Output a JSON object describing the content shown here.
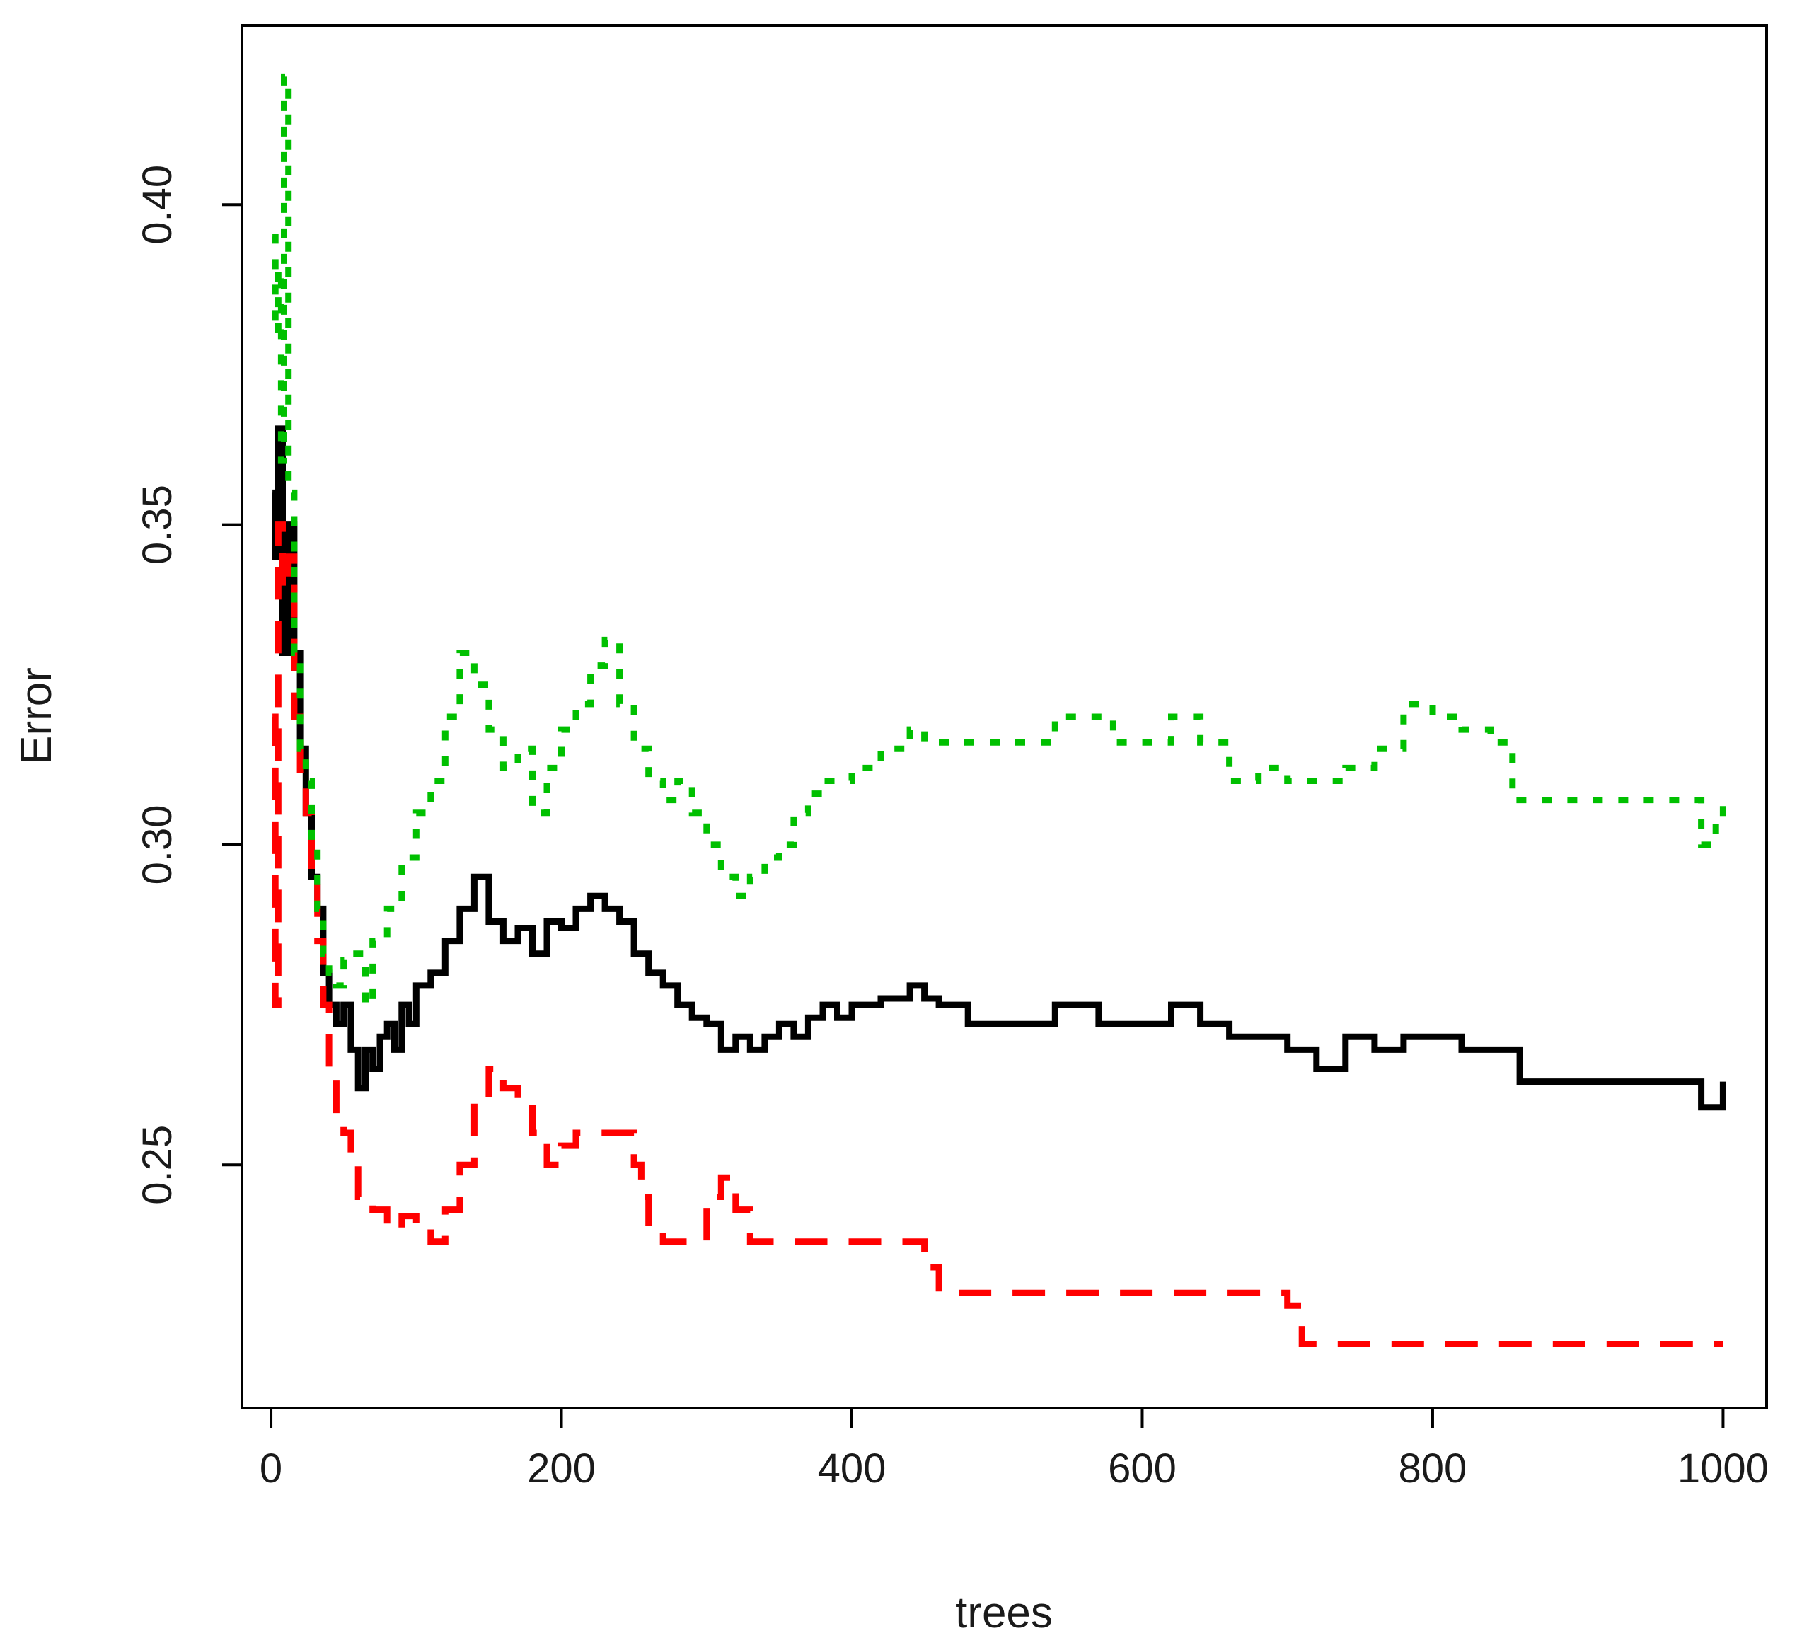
{
  "chart_data": {
    "type": "line",
    "title": "",
    "xlabel": "trees",
    "ylabel": "Error",
    "xlim": [
      -20,
      1030
    ],
    "ylim": [
      0.212,
      0.428
    ],
    "xticks": [
      0,
      200,
      400,
      600,
      800,
      1000
    ],
    "xtick_labels": [
      "0",
      "200",
      "400",
      "600",
      "800",
      "1000"
    ],
    "yticks": [
      0.25,
      0.3,
      0.35,
      0.4
    ],
    "ytick_labels": [
      "0.25",
      "0.30",
      "0.35",
      "0.40"
    ],
    "grid": false,
    "legend": "none",
    "series": [
      {
        "color": "#000000",
        "dash": "solid",
        "points": [
          [
            1,
            0.355
          ],
          [
            3,
            0.345
          ],
          [
            5,
            0.365
          ],
          [
            8,
            0.33
          ],
          [
            12,
            0.35
          ],
          [
            16,
            0.33
          ],
          [
            20,
            0.315
          ],
          [
            24,
            0.305
          ],
          [
            28,
            0.295
          ],
          [
            32,
            0.29
          ],
          [
            36,
            0.28
          ],
          [
            40,
            0.275
          ],
          [
            45,
            0.272
          ],
          [
            50,
            0.275
          ],
          [
            55,
            0.268
          ],
          [
            60,
            0.262
          ],
          [
            65,
            0.268
          ],
          [
            70,
            0.265
          ],
          [
            75,
            0.27
          ],
          [
            80,
            0.272
          ],
          [
            85,
            0.268
          ],
          [
            90,
            0.275
          ],
          [
            95,
            0.272
          ],
          [
            100,
            0.278
          ],
          [
            110,
            0.28
          ],
          [
            120,
            0.285
          ],
          [
            130,
            0.29
          ],
          [
            140,
            0.295
          ],
          [
            150,
            0.288
          ],
          [
            160,
            0.285
          ],
          [
            170,
            0.287
          ],
          [
            180,
            0.283
          ],
          [
            190,
            0.288
          ],
          [
            200,
            0.287
          ],
          [
            210,
            0.29
          ],
          [
            220,
            0.292
          ],
          [
            230,
            0.29
          ],
          [
            240,
            0.288
          ],
          [
            250,
            0.283
          ],
          [
            260,
            0.28
          ],
          [
            270,
            0.278
          ],
          [
            280,
            0.275
          ],
          [
            290,
            0.273
          ],
          [
            300,
            0.272
          ],
          [
            310,
            0.268
          ],
          [
            320,
            0.27
          ],
          [
            330,
            0.268
          ],
          [
            340,
            0.27
          ],
          [
            350,
            0.272
          ],
          [
            360,
            0.27
          ],
          [
            370,
            0.273
          ],
          [
            380,
            0.275
          ],
          [
            390,
            0.273
          ],
          [
            400,
            0.275
          ],
          [
            420,
            0.276
          ],
          [
            440,
            0.278
          ],
          [
            450,
            0.276
          ],
          [
            460,
            0.275
          ],
          [
            480,
            0.272
          ],
          [
            500,
            0.272
          ],
          [
            520,
            0.272
          ],
          [
            540,
            0.275
          ],
          [
            560,
            0.275
          ],
          [
            570,
            0.272
          ],
          [
            600,
            0.272
          ],
          [
            620,
            0.275
          ],
          [
            640,
            0.272
          ],
          [
            660,
            0.27
          ],
          [
            680,
            0.27
          ],
          [
            700,
            0.268
          ],
          [
            720,
            0.265
          ],
          [
            740,
            0.27
          ],
          [
            760,
            0.268
          ],
          [
            780,
            0.27
          ],
          [
            800,
            0.27
          ],
          [
            820,
            0.268
          ],
          [
            850,
            0.268
          ],
          [
            860,
            0.263
          ],
          [
            900,
            0.263
          ],
          [
            950,
            0.263
          ],
          [
            980,
            0.263
          ],
          [
            985,
            0.259
          ],
          [
            995,
            0.259
          ],
          [
            1000,
            0.263
          ]
        ]
      },
      {
        "color": "#ff0000",
        "dash": "dashed",
        "points": [
          [
            1,
            0.32
          ],
          [
            3,
            0.275
          ],
          [
            5,
            0.35
          ],
          [
            8,
            0.34
          ],
          [
            12,
            0.345
          ],
          [
            16,
            0.32
          ],
          [
            20,
            0.31
          ],
          [
            24,
            0.305
          ],
          [
            28,
            0.295
          ],
          [
            32,
            0.285
          ],
          [
            36,
            0.275
          ],
          [
            40,
            0.265
          ],
          [
            45,
            0.258
          ],
          [
            50,
            0.255
          ],
          [
            55,
            0.25
          ],
          [
            60,
            0.245
          ],
          [
            70,
            0.243
          ],
          [
            80,
            0.24
          ],
          [
            90,
            0.242
          ],
          [
            100,
            0.24
          ],
          [
            110,
            0.238
          ],
          [
            120,
            0.243
          ],
          [
            130,
            0.25
          ],
          [
            140,
            0.26
          ],
          [
            150,
            0.265
          ],
          [
            160,
            0.262
          ],
          [
            170,
            0.26
          ],
          [
            180,
            0.255
          ],
          [
            190,
            0.25
          ],
          [
            200,
            0.253
          ],
          [
            210,
            0.255
          ],
          [
            220,
            0.255
          ],
          [
            230,
            0.255
          ],
          [
            240,
            0.255
          ],
          [
            250,
            0.25
          ],
          [
            255,
            0.245
          ],
          [
            260,
            0.24
          ],
          [
            270,
            0.238
          ],
          [
            280,
            0.238
          ],
          [
            290,
            0.238
          ],
          [
            300,
            0.245
          ],
          [
            310,
            0.248
          ],
          [
            320,
            0.243
          ],
          [
            330,
            0.238
          ],
          [
            400,
            0.238
          ],
          [
            440,
            0.238
          ],
          [
            450,
            0.234
          ],
          [
            460,
            0.23
          ],
          [
            500,
            0.23
          ],
          [
            600,
            0.23
          ],
          [
            690,
            0.23
          ],
          [
            700,
            0.228
          ],
          [
            710,
            0.222
          ],
          [
            800,
            0.222
          ],
          [
            900,
            0.222
          ],
          [
            1000,
            0.222
          ]
        ]
      },
      {
        "color": "#00c000",
        "dash": "dotted",
        "points": [
          [
            1,
            0.395
          ],
          [
            3,
            0.38
          ],
          [
            5,
            0.39
          ],
          [
            7,
            0.36
          ],
          [
            9,
            0.42
          ],
          [
            12,
            0.355
          ],
          [
            16,
            0.33
          ],
          [
            20,
            0.315
          ],
          [
            24,
            0.31
          ],
          [
            28,
            0.3
          ],
          [
            32,
            0.29
          ],
          [
            36,
            0.283
          ],
          [
            40,
            0.28
          ],
          [
            45,
            0.278
          ],
          [
            50,
            0.282
          ],
          [
            55,
            0.283
          ],
          [
            60,
            0.283
          ],
          [
            65,
            0.275
          ],
          [
            70,
            0.285
          ],
          [
            80,
            0.29
          ],
          [
            90,
            0.298
          ],
          [
            100,
            0.305
          ],
          [
            110,
            0.31
          ],
          [
            120,
            0.32
          ],
          [
            130,
            0.33
          ],
          [
            140,
            0.325
          ],
          [
            150,
            0.318
          ],
          [
            160,
            0.312
          ],
          [
            170,
            0.315
          ],
          [
            180,
            0.305
          ],
          [
            190,
            0.312
          ],
          [
            200,
            0.318
          ],
          [
            210,
            0.322
          ],
          [
            220,
            0.328
          ],
          [
            230,
            0.332
          ],
          [
            240,
            0.322
          ],
          [
            250,
            0.315
          ],
          [
            260,
            0.31
          ],
          [
            270,
            0.307
          ],
          [
            280,
            0.31
          ],
          [
            290,
            0.305
          ],
          [
            300,
            0.3
          ],
          [
            310,
            0.295
          ],
          [
            320,
            0.292
          ],
          [
            330,
            0.295
          ],
          [
            340,
            0.298
          ],
          [
            350,
            0.3
          ],
          [
            360,
            0.305
          ],
          [
            370,
            0.308
          ],
          [
            380,
            0.31
          ],
          [
            400,
            0.312
          ],
          [
            420,
            0.315
          ],
          [
            440,
            0.318
          ],
          [
            450,
            0.316
          ],
          [
            500,
            0.316
          ],
          [
            530,
            0.316
          ],
          [
            540,
            0.32
          ],
          [
            560,
            0.32
          ],
          [
            580,
            0.316
          ],
          [
            600,
            0.316
          ],
          [
            620,
            0.32
          ],
          [
            640,
            0.316
          ],
          [
            660,
            0.31
          ],
          [
            680,
            0.312
          ],
          [
            700,
            0.31
          ],
          [
            720,
            0.31
          ],
          [
            740,
            0.312
          ],
          [
            760,
            0.315
          ],
          [
            780,
            0.322
          ],
          [
            800,
            0.32
          ],
          [
            820,
            0.318
          ],
          [
            840,
            0.316
          ],
          [
            850,
            0.316
          ],
          [
            855,
            0.307
          ],
          [
            900,
            0.307
          ],
          [
            980,
            0.307
          ],
          [
            985,
            0.3
          ],
          [
            995,
            0.305
          ],
          [
            1000,
            0.307
          ]
        ]
      }
    ]
  }
}
